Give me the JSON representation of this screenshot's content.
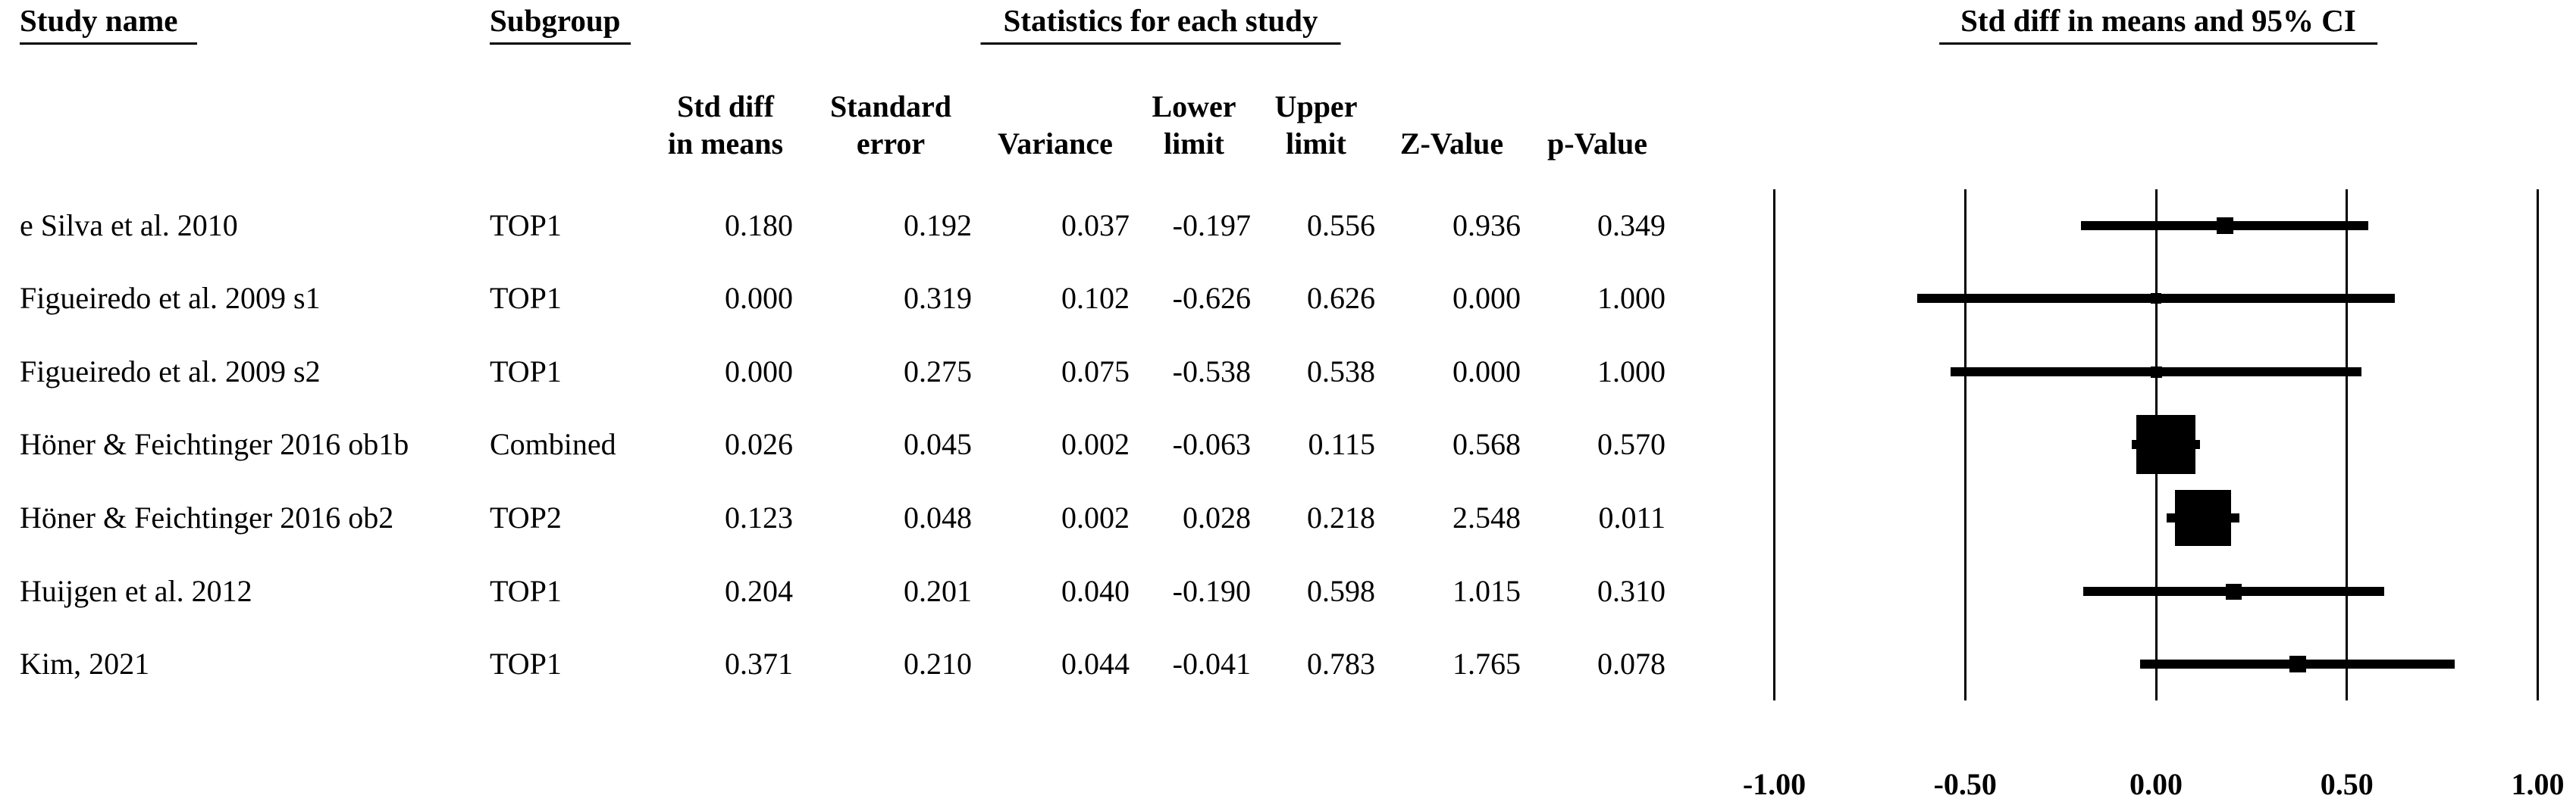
{
  "colors": {
    "ink": "#000000",
    "background": "#ffffff"
  },
  "chart_data": {
    "type": "scatter",
    "variant": "forest_plot",
    "headers": {
      "study_name": "Study name",
      "subgroup": "Subgroup",
      "statistics": "Statistics for each study",
      "plot": "Std diff in means and 95% CI"
    },
    "stat_columns": [
      {
        "line1": "Std diff",
        "line2": "in means"
      },
      {
        "line1": "Standard",
        "line2": "error"
      },
      {
        "line1": "",
        "line2": "Variance"
      },
      {
        "line1": "Lower",
        "line2": "limit"
      },
      {
        "line1": "Upper",
        "line2": "limit"
      },
      {
        "line1": "",
        "line2": "Z-Value"
      },
      {
        "line1": "",
        "line2": "p-Value"
      }
    ],
    "studies": [
      {
        "name": "e Silva et al. 2010",
        "subgroup": "TOP1",
        "values": {
          "std_diff": "0.180",
          "std_err": "0.192",
          "variance": "0.037",
          "lower": "-0.197",
          "upper": "0.556",
          "z": "0.936",
          "p": "0.349"
        },
        "plot": {
          "mean": 0.18,
          "lower": -0.197,
          "upper": 0.556,
          "marker_px": 22
        }
      },
      {
        "name": "Figueiredo et al. 2009 s1",
        "subgroup": "TOP1",
        "values": {
          "std_diff": "0.000",
          "std_err": "0.319",
          "variance": "0.102",
          "lower": "-0.626",
          "upper": "0.626",
          "z": "0.000",
          "p": "1.000"
        },
        "plot": {
          "mean": 0.0,
          "lower": -0.626,
          "upper": 0.626,
          "marker_px": 14
        }
      },
      {
        "name": "Figueiredo et al. 2009 s2",
        "subgroup": "TOP1",
        "values": {
          "std_diff": "0.000",
          "std_err": "0.275",
          "variance": "0.075",
          "lower": "-0.538",
          "upper": "0.538",
          "z": "0.000",
          "p": "1.000"
        },
        "plot": {
          "mean": 0.0,
          "lower": -0.538,
          "upper": 0.538,
          "marker_px": 15
        }
      },
      {
        "name": "Höner & Feichtinger 2016 ob1b",
        "subgroup": "Combined",
        "values": {
          "std_diff": "0.026",
          "std_err": "0.045",
          "variance": "0.002",
          "lower": "-0.063",
          "upper": "0.115",
          "z": "0.568",
          "p": "0.570"
        },
        "plot": {
          "mean": 0.026,
          "lower": -0.063,
          "upper": 0.115,
          "marker_px": 78
        }
      },
      {
        "name": "Höner & Feichtinger 2016 ob2",
        "subgroup": "TOP2",
        "values": {
          "std_diff": "0.123",
          "std_err": "0.048",
          "variance": "0.002",
          "lower": "0.028",
          "upper": "0.218",
          "z": "2.548",
          "p": "0.011"
        },
        "plot": {
          "mean": 0.123,
          "lower": 0.028,
          "upper": 0.218,
          "marker_px": 74
        }
      },
      {
        "name": "Huijgen et al. 2012",
        "subgroup": "TOP1",
        "values": {
          "std_diff": "0.204",
          "std_err": "0.201",
          "variance": "0.040",
          "lower": "-0.190",
          "upper": "0.598",
          "z": "1.015",
          "p": "0.310"
        },
        "plot": {
          "mean": 0.204,
          "lower": -0.19,
          "upper": 0.598,
          "marker_px": 21
        }
      },
      {
        "name": "Kim, 2021",
        "subgroup": "TOP1",
        "values": {
          "std_diff": "0.371",
          "std_err": "0.210",
          "variance": "0.044",
          "lower": "-0.041",
          "upper": "0.783",
          "z": "1.765",
          "p": "0.078"
        },
        "plot": {
          "mean": 0.371,
          "lower": -0.041,
          "upper": 0.783,
          "marker_px": 22
        }
      }
    ],
    "x_axis": {
      "min": -1.0,
      "max": 1.0,
      "tick_values": [
        -1.0,
        -0.5,
        0.0,
        0.5,
        1.0
      ],
      "tick_labels": [
        "-1.00",
        "-0.50",
        "0.00",
        "0.50",
        "1.00"
      ],
      "grid": true
    }
  }
}
